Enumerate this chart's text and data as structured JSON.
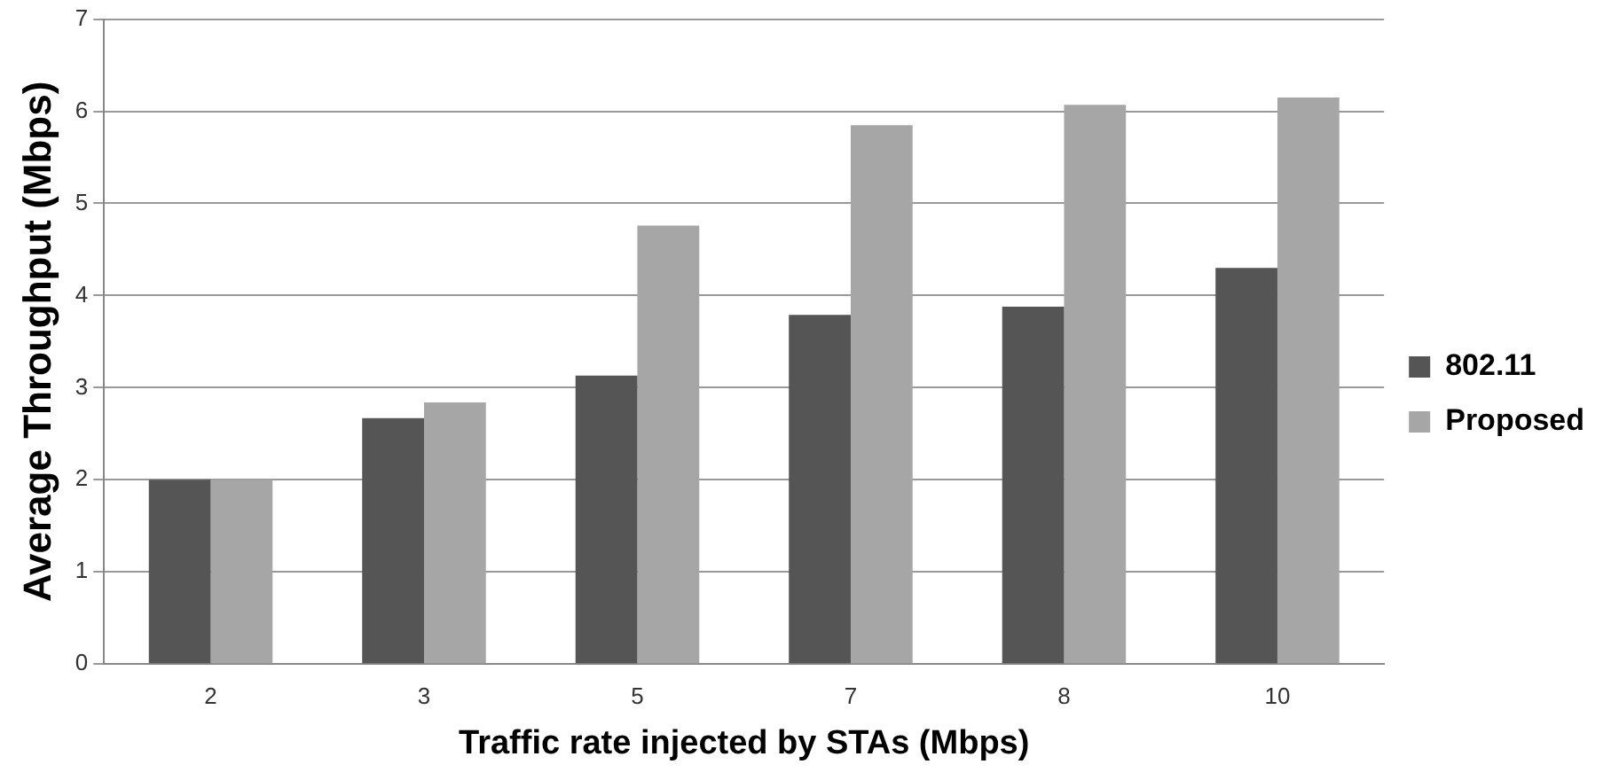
{
  "chart_data": {
    "type": "bar",
    "xlabel": "Traffic rate injected by STAs (Mbps)",
    "ylabel": "Average Throughput (Mbps)",
    "categories": [
      "2",
      "3",
      "5",
      "7",
      "8",
      "10"
    ],
    "series": [
      {
        "name": "802.11",
        "color": "#555555",
        "values": [
          2.0,
          2.67,
          3.13,
          3.79,
          3.88,
          4.3
        ]
      },
      {
        "name": "Proposed",
        "color": "#a6a6a6",
        "values": [
          2.0,
          2.84,
          4.76,
          5.85,
          6.07,
          6.15
        ]
      }
    ],
    "ylim": [
      0,
      7
    ],
    "yticks": [
      0,
      1,
      2,
      3,
      4,
      5,
      6,
      7
    ],
    "grid": "y",
    "legend": "right"
  }
}
